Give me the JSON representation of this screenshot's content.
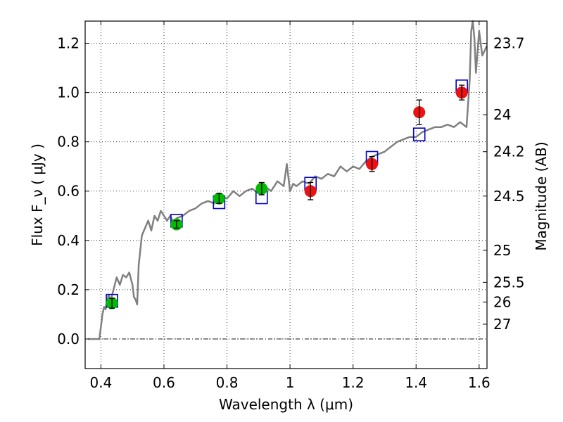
{
  "chart_data": {
    "type": "scatter",
    "title": "",
    "xlabel": "Wavelength  λ (μm)",
    "ylabel": "Flux  F_ν  ( μJy )",
    "ylabel_right": "Magnitude (AB)",
    "xlim": [
      0.35,
      1.625
    ],
    "ylim": [
      -0.12,
      1.29
    ],
    "xticks": [
      0.4,
      0.6,
      0.8,
      1.0,
      1.2,
      1.4,
      1.6
    ],
    "xtick_labels": [
      "0.4",
      "0.6",
      "0.8",
      "1",
      "1.2",
      "1.4",
      "1.6"
    ],
    "yticks": [
      0.0,
      0.2,
      0.4,
      0.6,
      0.8,
      1.0,
      1.2
    ],
    "ytick_labels": [
      "0.0",
      "0.2",
      "0.4",
      "0.6",
      "0.8",
      "1.0",
      "1.2"
    ],
    "mag_ticks": [
      {
        "label": "23.7",
        "flux": 1.2
      },
      {
        "label": "24",
        "flux": 0.91
      },
      {
        "label": "24.2",
        "flux": 0.76
      },
      {
        "label": "24.5",
        "flux": 0.58
      },
      {
        "label": "25",
        "flux": 0.36
      },
      {
        "label": "25.5",
        "flux": 0.23
      },
      {
        "label": "26",
        "flux": 0.15
      },
      {
        "label": "27",
        "flux": 0.06
      }
    ],
    "grid": true,
    "colors": {
      "spectrum": "#808080",
      "green_points": "#00bb00",
      "red_points": "#ee1111",
      "model_boxes": "#0000cc",
      "errorbar": "#000000"
    },
    "series": [
      {
        "kind": "line",
        "x": [
          0.36,
          0.38,
          0.395,
          0.405,
          0.41,
          0.415,
          0.42,
          0.425,
          0.43,
          0.44,
          0.45,
          0.46,
          0.47,
          0.48,
          0.49,
          0.5,
          0.505,
          0.51,
          0.515,
          0.52,
          0.53,
          0.54,
          0.55,
          0.56,
          0.57,
          0.58,
          0.59,
          0.6,
          0.61,
          0.62,
          0.63,
          0.64,
          0.66,
          0.68,
          0.7,
          0.72,
          0.74,
          0.76,
          0.78,
          0.8,
          0.82,
          0.84,
          0.86,
          0.88,
          0.9,
          0.92,
          0.94,
          0.96,
          0.98,
          0.99,
          1.0,
          1.01,
          1.02,
          1.04,
          1.06,
          1.08,
          1.1,
          1.12,
          1.14,
          1.16,
          1.18,
          1.2,
          1.22,
          1.24,
          1.26,
          1.28,
          1.3,
          1.32,
          1.34,
          1.36,
          1.38,
          1.4,
          1.42,
          1.44,
          1.46,
          1.48,
          1.5,
          1.52,
          1.54,
          1.56,
          1.57,
          1.575,
          1.58,
          1.585,
          1.59,
          1.6,
          1.61,
          1.625
        ],
        "y": [
          0.0,
          0.0,
          0.0,
          0.1,
          0.13,
          0.12,
          0.16,
          0.18,
          0.15,
          0.2,
          0.25,
          0.22,
          0.26,
          0.25,
          0.27,
          0.22,
          0.17,
          0.16,
          0.14,
          0.3,
          0.42,
          0.45,
          0.48,
          0.44,
          0.5,
          0.48,
          0.52,
          0.5,
          0.48,
          0.5,
          0.47,
          0.49,
          0.5,
          0.52,
          0.53,
          0.55,
          0.56,
          0.55,
          0.58,
          0.57,
          0.6,
          0.58,
          0.6,
          0.61,
          0.59,
          0.62,
          0.6,
          0.64,
          0.62,
          0.71,
          0.6,
          0.63,
          0.62,
          0.64,
          0.63,
          0.66,
          0.65,
          0.67,
          0.66,
          0.7,
          0.68,
          0.7,
          0.69,
          0.72,
          0.74,
          0.75,
          0.76,
          0.78,
          0.8,
          0.81,
          0.82,
          0.82,
          0.84,
          0.85,
          0.86,
          0.86,
          0.87,
          0.86,
          0.88,
          0.86,
          1.05,
          1.25,
          1.29,
          1.22,
          1.08,
          1.25,
          1.15,
          1.19
        ]
      },
      {
        "kind": "points",
        "color": "green",
        "x": [
          0.435,
          0.64,
          0.775,
          0.91
        ],
        "y": [
          0.145,
          0.465,
          0.57,
          0.61
        ],
        "err": [
          0.02,
          0.015,
          0.02,
          0.025
        ]
      },
      {
        "kind": "points",
        "color": "red",
        "x": [
          1.065,
          1.26,
          1.41,
          1.545
        ],
        "y": [
          0.6,
          0.71,
          0.92,
          1.0
        ],
        "err": [
          0.035,
          0.03,
          0.05,
          0.03
        ]
      },
      {
        "kind": "boxes",
        "x": [
          0.435,
          0.64,
          0.775,
          0.91,
          1.065,
          1.26,
          1.41,
          1.545
        ],
        "y": [
          0.155,
          0.48,
          0.555,
          0.575,
          0.63,
          0.735,
          0.83,
          1.025
        ]
      }
    ]
  }
}
